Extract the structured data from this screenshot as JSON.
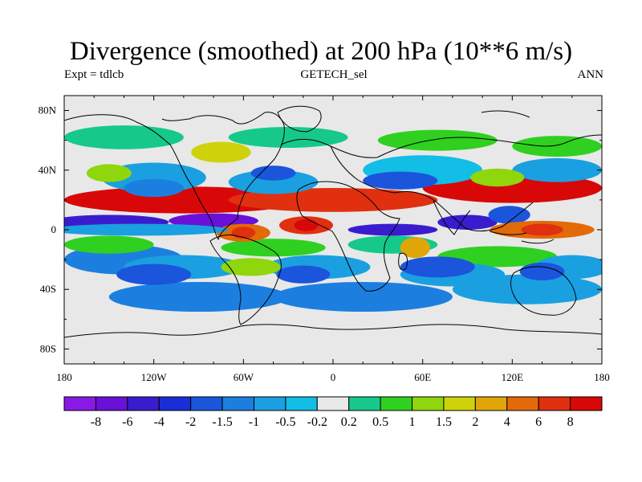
{
  "title": "Divergence (smoothed) at 200 hPa (10**6 m/s)",
  "subtitle_left": "Expt = tdlcb",
  "subtitle_center": "GETECH_sel",
  "subtitle_right": "ANN",
  "map": {
    "projection": "cylindrical-equidistant",
    "lon_range": [
      -180,
      180
    ],
    "lat_range": [
      -90,
      90
    ],
    "lon_ticks": [
      {
        "value": -180,
        "label": "180"
      },
      {
        "value": -120,
        "label": "120W"
      },
      {
        "value": -60,
        "label": "60W"
      },
      {
        "value": 0,
        "label": "0"
      },
      {
        "value": 60,
        "label": "60E"
      },
      {
        "value": 120,
        "label": "120E"
      },
      {
        "value": 180,
        "label": "180"
      }
    ],
    "lat_ticks": [
      {
        "value": 80,
        "label": "80N"
      },
      {
        "value": 40,
        "label": "40N"
      },
      {
        "value": 0,
        "label": "0"
      },
      {
        "value": -40,
        "label": "40S"
      },
      {
        "value": -80,
        "label": "80S"
      }
    ],
    "coastlines": "paleogeography"
  },
  "colorbar": {
    "levels": [
      "-8",
      "-6",
      "-4",
      "-2",
      "-1.5",
      "-1",
      "-0.5",
      "-0.2",
      "0.2",
      "0.5",
      "1",
      "1.5",
      "2",
      "4",
      "6",
      "8"
    ],
    "colors": [
      "#8a19e6",
      "#6a10d8",
      "#3a1ccf",
      "#1a2ed8",
      "#1a55dc",
      "#1c7fe0",
      "#1aa0e0",
      "#12bde6",
      "#e8e8e8",
      "#16c98a",
      "#30d020",
      "#8fd60c",
      "#cfd20a",
      "#e0a608",
      "#e26a08",
      "#e03010",
      "#d80808"
    ]
  },
  "chart_data": {
    "type": "heatmap",
    "variable": "Divergence (smoothed) at 200 hPa",
    "units": "10**6 m/s",
    "experiment": "tdlcb",
    "dataset": "GETECH_sel",
    "season": "ANN",
    "x_range": [
      -180,
      180
    ],
    "y_range": [
      -90,
      90
    ],
    "features": [
      {
        "name": "divergence-maximum-south-america",
        "lon": -60,
        "lat": -2,
        "value": 5
      },
      {
        "name": "divergence-maximum-atlantic",
        "lon": -18,
        "lat": 3,
        "value": 6
      },
      {
        "name": "divergence-maximum-maritime",
        "lon": 140,
        "lat": 0,
        "value": 4
      },
      {
        "name": "divergence-band-north-atlantic",
        "lon": -70,
        "lat": 55,
        "value": 2
      },
      {
        "name": "convergence-minimum-asia",
        "lon": 45,
        "lat": 33,
        "value": -2
      },
      {
        "name": "convergence-minimum-north-pacific",
        "lon": -120,
        "lat": 30,
        "value": -2
      },
      {
        "name": "convergence-minimum-south-pacific",
        "lon": -130,
        "lat": -25,
        "value": -2
      }
    ]
  }
}
